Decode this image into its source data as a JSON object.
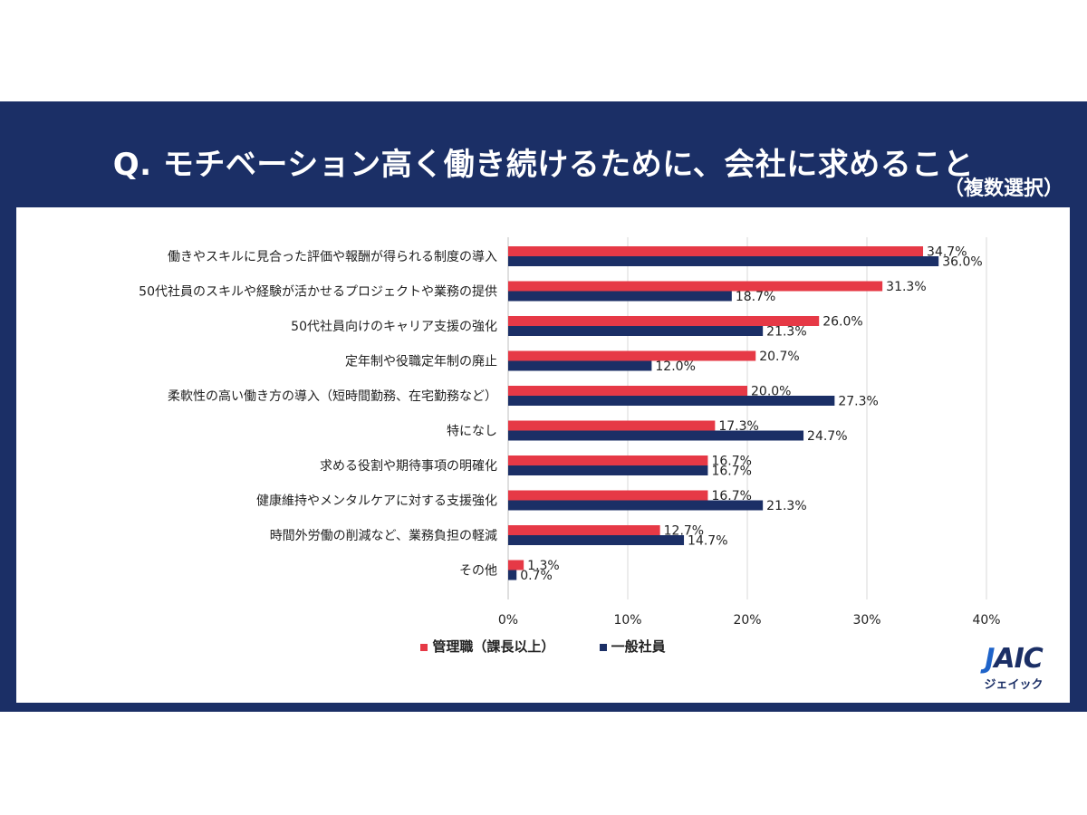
{
  "title": "Q. モチベーション高く働き続けるために、会社に求めること",
  "subtitle": "（複数選択）",
  "logo": {
    "mark_j": "J",
    "mark_rest": "AIC",
    "sub": "ジェイック"
  },
  "colors": {
    "background": "#1b2f66",
    "manager": "#e63946",
    "general": "#1b2f66"
  },
  "chart_data": {
    "type": "bar",
    "orientation": "horizontal",
    "categories": [
      "働きやスキルに見合った評価や報酬が得られる制度の導入",
      "50代社員のスキルや経験が活かせるプロジェクトや業務の提供",
      "50代社員向けのキャリア支援の強化",
      "定年制や役職定年制の廃止",
      "柔軟性の高い働き方の導入（短時間勤務、在宅勤務など）",
      "特になし",
      "求める役割や期待事項の明確化",
      "健康維持やメンタルケアに対する支援強化",
      "時間外労働の削減など、業務負担の軽減",
      "その他"
    ],
    "series": [
      {
        "name": "管理職（課長以上）",
        "color": "#e63946",
        "values": [
          34.7,
          31.3,
          26.0,
          20.7,
          20.0,
          17.3,
          16.7,
          16.7,
          12.7,
          1.3
        ],
        "labels": [
          "34.7%",
          "31.3%",
          "26.0%",
          "20.7%",
          "20.0%",
          "17.3%",
          "16.7%",
          "16.7%",
          "12.7%",
          "1.3%"
        ]
      },
      {
        "name": "一般社員",
        "color": "#1b2f66",
        "values": [
          36.0,
          18.7,
          21.3,
          12.0,
          27.3,
          24.7,
          16.7,
          21.3,
          14.7,
          0.7
        ],
        "labels": [
          "36.0%",
          "18.7%",
          "21.3%",
          "12.0%",
          "27.3%",
          "24.7%",
          "16.7%",
          "21.3%",
          "14.7%",
          "0.7%"
        ]
      }
    ],
    "xlim": [
      0,
      40
    ],
    "xticks": [
      "0%",
      "10%",
      "20%",
      "30%",
      "40%"
    ],
    "grid": true,
    "legend": "bottom"
  }
}
